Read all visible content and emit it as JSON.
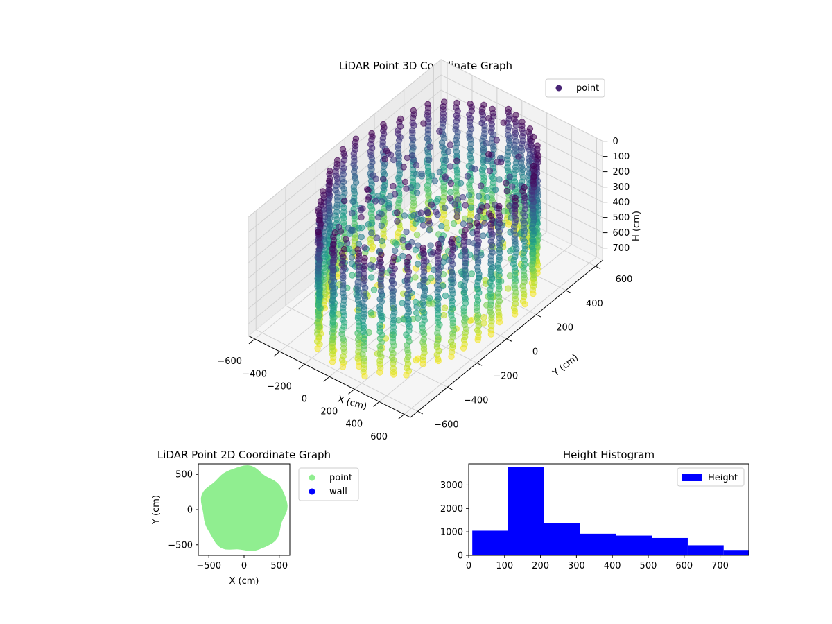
{
  "chart_data": [
    {
      "type": "scatter",
      "projection": "3d",
      "title": "LiDAR Point 3D Coordinate Graph",
      "xlabel": "X (cm)",
      "ylabel": "Y (cm)",
      "zlabel": "H (cm)",
      "xlim": [
        -650,
        650
      ],
      "ylim": [
        -650,
        650
      ],
      "zlim": [
        780,
        0
      ],
      "z_inverted": true,
      "xticks": [
        -600,
        -400,
        -200,
        0,
        200,
        400,
        600
      ],
      "yticks": [
        -600,
        -400,
        -200,
        0,
        200,
        400,
        600
      ],
      "zticks": [
        0,
        100,
        200,
        300,
        400,
        500,
        600,
        700
      ],
      "grid": true,
      "colormap": "viridis",
      "legend": {
        "placement": "top-right",
        "entries": [
          {
            "label": "point",
            "color": "#482475"
          }
        ]
      },
      "series": [
        {
          "name": "point",
          "description_of_shape": "ring of vertical point columns around origin, radius ~600 cm, heights 0-780 cm",
          "ring_radius": 600,
          "columns": 46,
          "height_range": [
            0,
            780
          ]
        }
      ]
    },
    {
      "type": "scatter",
      "title": "LiDAR Point 2D Coordinate Graph",
      "xlabel": "X (cm)",
      "ylabel": "Y (cm)",
      "xlim": [
        -650,
        650
      ],
      "ylim": [
        -650,
        650
      ],
      "xticks": [
        -500,
        0,
        500
      ],
      "yticks": [
        -500,
        0,
        500
      ],
      "legend": {
        "placement": "outside-right",
        "entries": [
          {
            "label": "point",
            "color": "#90ee90"
          },
          {
            "label": "wall",
            "color": "#0000ff"
          }
        ]
      },
      "series": [
        {
          "name": "point",
          "color": "#90ee90",
          "shape": "filled disc",
          "radius": 620
        },
        {
          "name": "wall",
          "color": "#0000ff",
          "points": []
        }
      ]
    },
    {
      "type": "bar",
      "subtype": "histogram",
      "title": "Height Histogram",
      "xlim": [
        0,
        780
      ],
      "ylim": [
        0,
        3900
      ],
      "xticks": [
        0,
        100,
        200,
        300,
        400,
        500,
        600,
        700
      ],
      "yticks": [
        0,
        1000,
        2000,
        3000
      ],
      "bin_edges": [
        10,
        110,
        210,
        310,
        410,
        510,
        610,
        710,
        810
      ],
      "values": [
        1050,
        3780,
        1380,
        920,
        840,
        740,
        430,
        230
      ],
      "color": "#0000ff",
      "legend": {
        "placement": "top-right",
        "entries": [
          {
            "label": "Height",
            "color": "#0000ff"
          }
        ]
      }
    }
  ]
}
